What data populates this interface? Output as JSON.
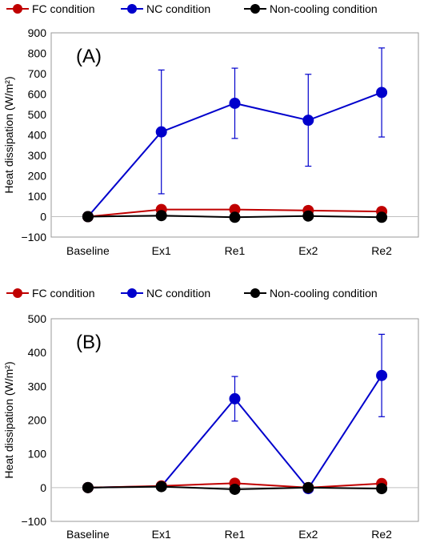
{
  "chart_data": [
    {
      "type": "line",
      "panel_label": "(A)",
      "ylabel": "Heat dissipation (W/m²)",
      "ylim": [
        -100,
        900
      ],
      "ytick_step": 100,
      "categories": [
        "Baseline",
        "Ex1",
        "Re1",
        "Ex2",
        "Re2"
      ],
      "legend_position": "top",
      "series": [
        {
          "name": "FC condition",
          "color": "#c00000",
          "values": [
            0,
            35,
            35,
            30,
            25
          ],
          "error": [
            0,
            0,
            0,
            0,
            0
          ]
        },
        {
          "name": "NC condition",
          "color": "#0000cc",
          "values": [
            0,
            415,
            555,
            472,
            608
          ],
          "error": [
            0,
            303,
            172,
            225,
            218
          ]
        },
        {
          "name": "Non-cooling condition",
          "color": "#000000",
          "values": [
            0,
            5,
            -3,
            3,
            -3
          ],
          "error": [
            0,
            0,
            0,
            0,
            0
          ]
        }
      ]
    },
    {
      "type": "line",
      "panel_label": "(B)",
      "ylabel": "Heat dissipation (W/m²)",
      "ylim": [
        -100,
        500
      ],
      "ytick_step": 100,
      "categories": [
        "Baseline",
        "Ex1",
        "Re1",
        "Ex2",
        "Re2"
      ],
      "legend_position": "top",
      "series": [
        {
          "name": "FC condition",
          "color": "#c00000",
          "values": [
            0,
            5,
            13,
            0,
            12
          ],
          "error": [
            0,
            0,
            0,
            0,
            10
          ]
        },
        {
          "name": "NC condition",
          "color": "#0000cc",
          "values": [
            0,
            4,
            263,
            -3,
            332
          ],
          "error": [
            0,
            0,
            66,
            0,
            122
          ]
        },
        {
          "name": "Non-cooling condition",
          "color": "#000000",
          "values": [
            0,
            3,
            -5,
            0,
            -3
          ],
          "error": [
            0,
            0,
            0,
            0,
            0
          ]
        }
      ]
    }
  ]
}
